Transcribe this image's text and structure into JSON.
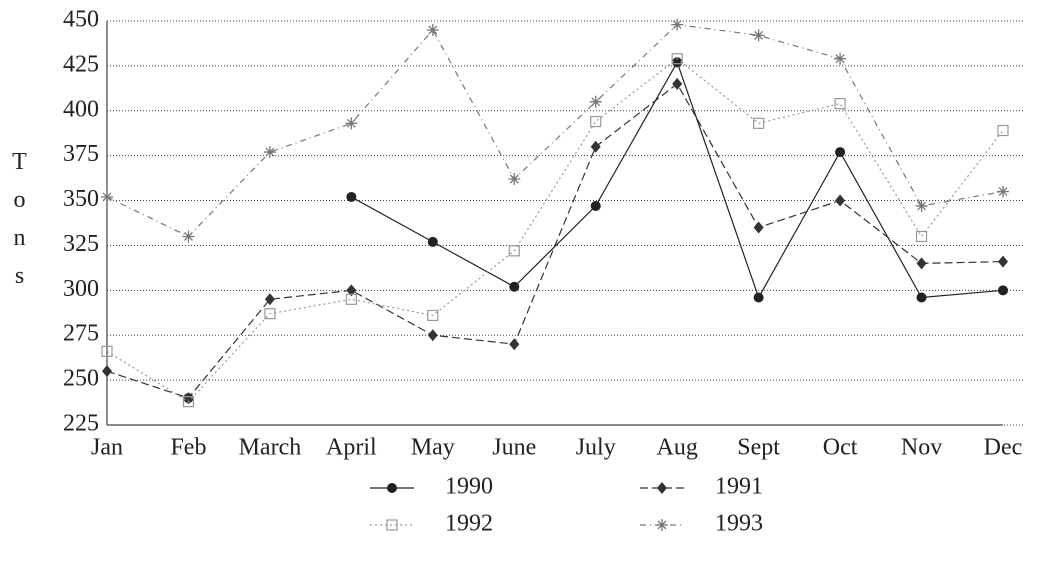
{
  "chart_data": {
    "type": "line",
    "y_label": "Tons",
    "categories": [
      "Jan",
      "Feb",
      "March",
      "April",
      "May",
      "June",
      "July",
      "Aug",
      "Sept",
      "Oct",
      "Nov",
      "Dec"
    ],
    "series": [
      {
        "name": "1990",
        "color": "#222222",
        "marker": "circle",
        "linestyle": "solid",
        "values": [
          null,
          240,
          null,
          352,
          327,
          302,
          347,
          427,
          296,
          377,
          296,
          300
        ]
      },
      {
        "name": "1991",
        "color": "#333333",
        "marker": "diamond",
        "linestyle": "dashed",
        "values": [
          255,
          240,
          295,
          300,
          275,
          270,
          380,
          415,
          335,
          350,
          315,
          316
        ]
      },
      {
        "name": "1992",
        "color": "#999999",
        "marker": "square",
        "linestyle": "dotted",
        "values": [
          266,
          238,
          287,
          295,
          286,
          322,
          394,
          429,
          393,
          404,
          330,
          389
        ]
      },
      {
        "name": "1993",
        "color": "#777777",
        "marker": "asterisk",
        "linestyle": "dashdot",
        "values": [
          352,
          330,
          377,
          393,
          445,
          362,
          405,
          448,
          442,
          429,
          347,
          355
        ]
      }
    ],
    "ylim": [
      225,
      450
    ],
    "yticks": [
      225,
      250,
      275,
      300,
      325,
      350,
      375,
      400,
      425,
      450
    ],
    "grid": true
  }
}
